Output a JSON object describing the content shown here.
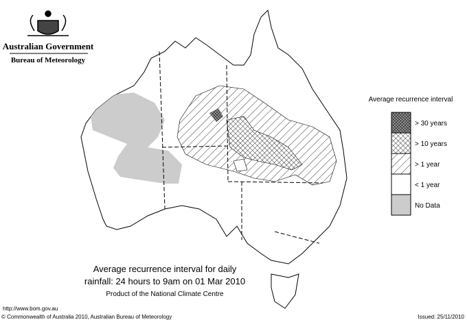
{
  "header": {
    "title": "Australian Government",
    "subtitle": "Bureau of Meteorology"
  },
  "legend": {
    "title": "Average recurrence interval",
    "items": [
      "> 30 years",
      "> 10 years",
      "> 1 year",
      "< 1 year",
      "No Data"
    ]
  },
  "caption": {
    "lines": [
      "Average recurrence interval for daily",
      "rainfall: 24 hours to 9am on 01 Mar 2010"
    ],
    "credit": "Product of the National Climate Centre"
  },
  "footer": {
    "url": "http://www.bom.gov.au",
    "copyright": "© Commonwealth of Australia 2010, Australian Bureau of Meteorology",
    "issued": "Issued: 25/11/2010"
  }
}
